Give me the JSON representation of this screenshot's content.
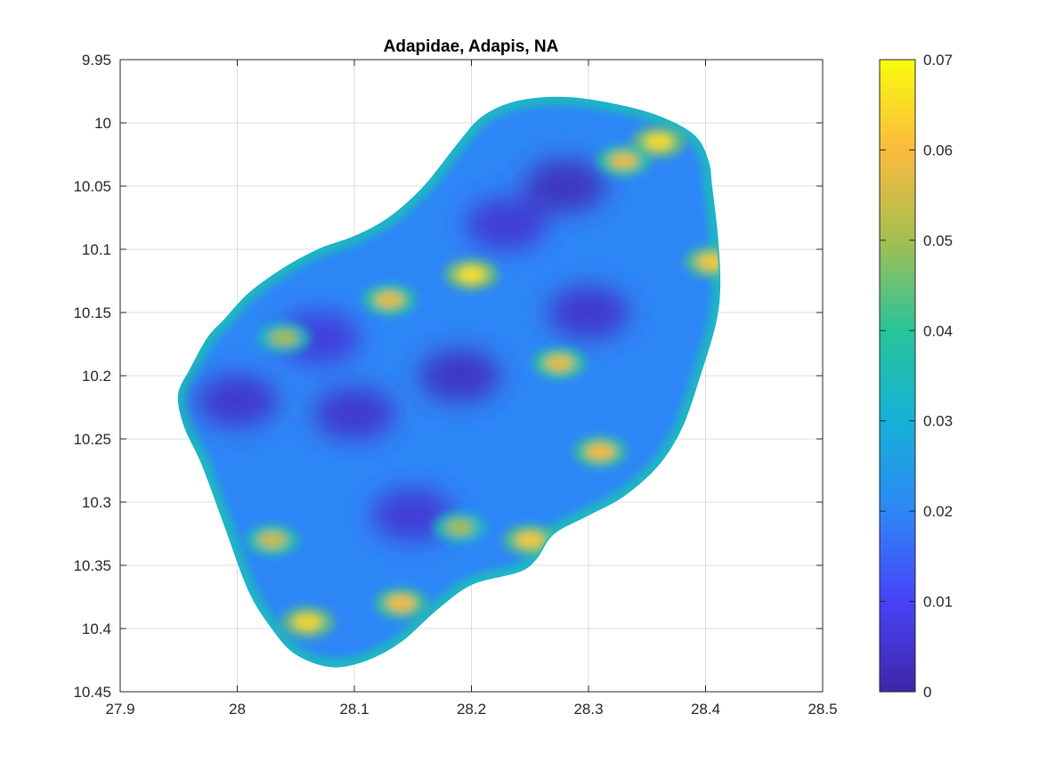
{
  "chart_data": {
    "type": "heatmap",
    "title": "Adapidae, Adapis, NA",
    "xlabel": "",
    "ylabel": "",
    "xlim": [
      27.9,
      28.5
    ],
    "ylim": [
      9.95,
      10.45
    ],
    "y_reversed": true,
    "grid": true,
    "x_ticks": [
      "27.9",
      "28",
      "28.1",
      "28.2",
      "28.3",
      "28.4",
      "28.5"
    ],
    "y_ticks": [
      "9.95",
      "10",
      "10.05",
      "10.1",
      "10.15",
      "10.2",
      "10.25",
      "10.3",
      "10.35",
      "10.4",
      "10.45"
    ],
    "colorbar": {
      "colormap": "parula",
      "range": [
        0,
        0.07
      ],
      "ticks": [
        "0",
        "0.01",
        "0.02",
        "0.03",
        "0.04",
        "0.05",
        "0.06",
        "0.07"
      ],
      "colors": [
        "#3e26a8",
        "#4743f8",
        "#2e87f7",
        "#15b1d7",
        "#28c49a",
        "#a5be50",
        "#fbbb3e",
        "#f9fb0e"
      ]
    },
    "surface_outline": [
      [
        27.95,
        10.215
      ],
      [
        27.96,
        10.195
      ],
      [
        27.975,
        10.17
      ],
      [
        27.99,
        10.155
      ],
      [
        28.01,
        10.135
      ],
      [
        28.04,
        10.115
      ],
      [
        28.07,
        10.1
      ],
      [
        28.1,
        10.09
      ],
      [
        28.13,
        10.075
      ],
      [
        28.16,
        10.05
      ],
      [
        28.19,
        10.015
      ],
      [
        28.21,
        9.995
      ],
      [
        28.24,
        9.983
      ],
      [
        28.28,
        9.98
      ],
      [
        28.32,
        9.985
      ],
      [
        28.36,
        9.995
      ],
      [
        28.39,
        10.01
      ],
      [
        28.402,
        10.03
      ],
      [
        28.405,
        10.05
      ],
      [
        28.41,
        10.09
      ],
      [
        28.412,
        10.13
      ],
      [
        28.408,
        10.16
      ],
      [
        28.395,
        10.2
      ],
      [
        28.38,
        10.24
      ],
      [
        28.36,
        10.27
      ],
      [
        28.33,
        10.295
      ],
      [
        28.3,
        10.31
      ],
      [
        28.27,
        10.325
      ],
      [
        28.255,
        10.345
      ],
      [
        28.24,
        10.355
      ],
      [
        28.2,
        10.365
      ],
      [
        28.17,
        10.385
      ],
      [
        28.14,
        10.41
      ],
      [
        28.11,
        10.425
      ],
      [
        28.08,
        10.43
      ],
      [
        28.05,
        10.42
      ],
      [
        28.03,
        10.4
      ],
      [
        28.01,
        10.37
      ],
      [
        27.99,
        10.32
      ],
      [
        27.97,
        10.27
      ],
      [
        27.955,
        10.24
      ]
    ],
    "hotspots": [
      {
        "x": 28.36,
        "y": 10.015,
        "value": 0.065
      },
      {
        "x": 28.405,
        "y": 10.11,
        "value": 0.062
      },
      {
        "x": 28.275,
        "y": 10.19,
        "value": 0.058
      },
      {
        "x": 28.31,
        "y": 10.26,
        "value": 0.06
      },
      {
        "x": 28.25,
        "y": 10.33,
        "value": 0.062
      },
      {
        "x": 28.13,
        "y": 10.14,
        "value": 0.058
      },
      {
        "x": 28.2,
        "y": 10.12,
        "value": 0.066
      },
      {
        "x": 28.04,
        "y": 10.17,
        "value": 0.05
      },
      {
        "x": 28.06,
        "y": 10.395,
        "value": 0.064
      },
      {
        "x": 28.14,
        "y": 10.38,
        "value": 0.06
      },
      {
        "x": 28.03,
        "y": 10.33,
        "value": 0.055
      },
      {
        "x": 28.19,
        "y": 10.32,
        "value": 0.05
      },
      {
        "x": 28.33,
        "y": 10.03,
        "value": 0.058
      }
    ],
    "coldspots": [
      {
        "x": 28.28,
        "y": 10.05,
        "value": 0.002
      },
      {
        "x": 28.19,
        "y": 10.2,
        "value": 0.003
      },
      {
        "x": 28.1,
        "y": 10.23,
        "value": 0.004
      },
      {
        "x": 28.3,
        "y": 10.15,
        "value": 0.004
      },
      {
        "x": 28.15,
        "y": 10.31,
        "value": 0.005
      },
      {
        "x": 28.23,
        "y": 10.08,
        "value": 0.005
      },
      {
        "x": 28.0,
        "y": 10.22,
        "value": 0.004
      },
      {
        "x": 28.07,
        "y": 10.17,
        "value": 0.006
      }
    ]
  }
}
